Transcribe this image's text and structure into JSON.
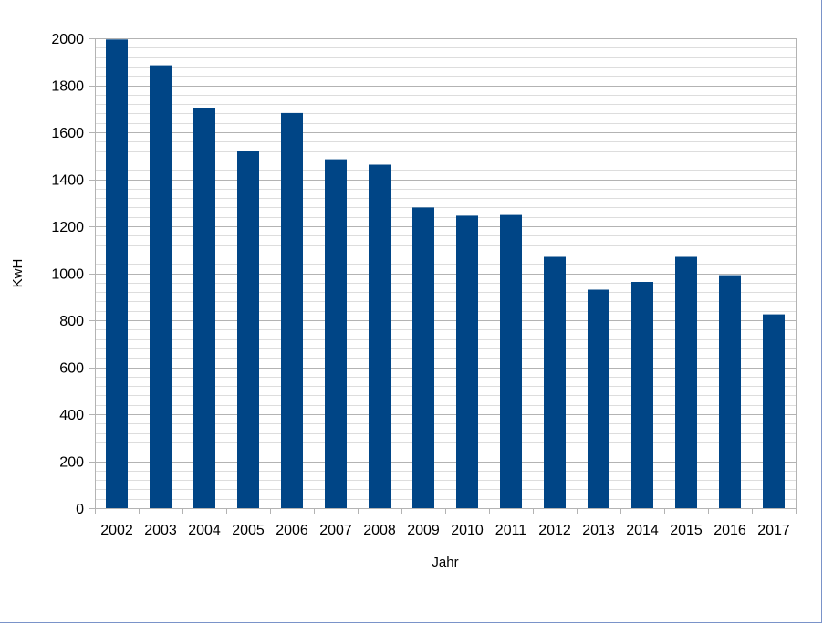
{
  "chart_data": {
    "type": "bar",
    "categories": [
      "2002",
      "2003",
      "2004",
      "2005",
      "2006",
      "2007",
      "2008",
      "2009",
      "2010",
      "2011",
      "2012",
      "2013",
      "2014",
      "2015",
      "2016",
      "2017"
    ],
    "values": [
      1995,
      1885,
      1705,
      1520,
      1682,
      1485,
      1462,
      1280,
      1245,
      1248,
      1070,
      930,
      963,
      1070,
      992,
      825
    ],
    "xlabel": "Jahr",
    "ylabel": "KwH",
    "ylim": [
      0,
      2000
    ],
    "yticks": [
      0,
      200,
      400,
      600,
      800,
      1000,
      1200,
      1400,
      1600,
      1800,
      2000
    ],
    "grid": true,
    "bar_color": "#004586",
    "major_grid_color": "#b3b3b3",
    "minor_grid_color": "#dddddd",
    "legend": "none"
  }
}
